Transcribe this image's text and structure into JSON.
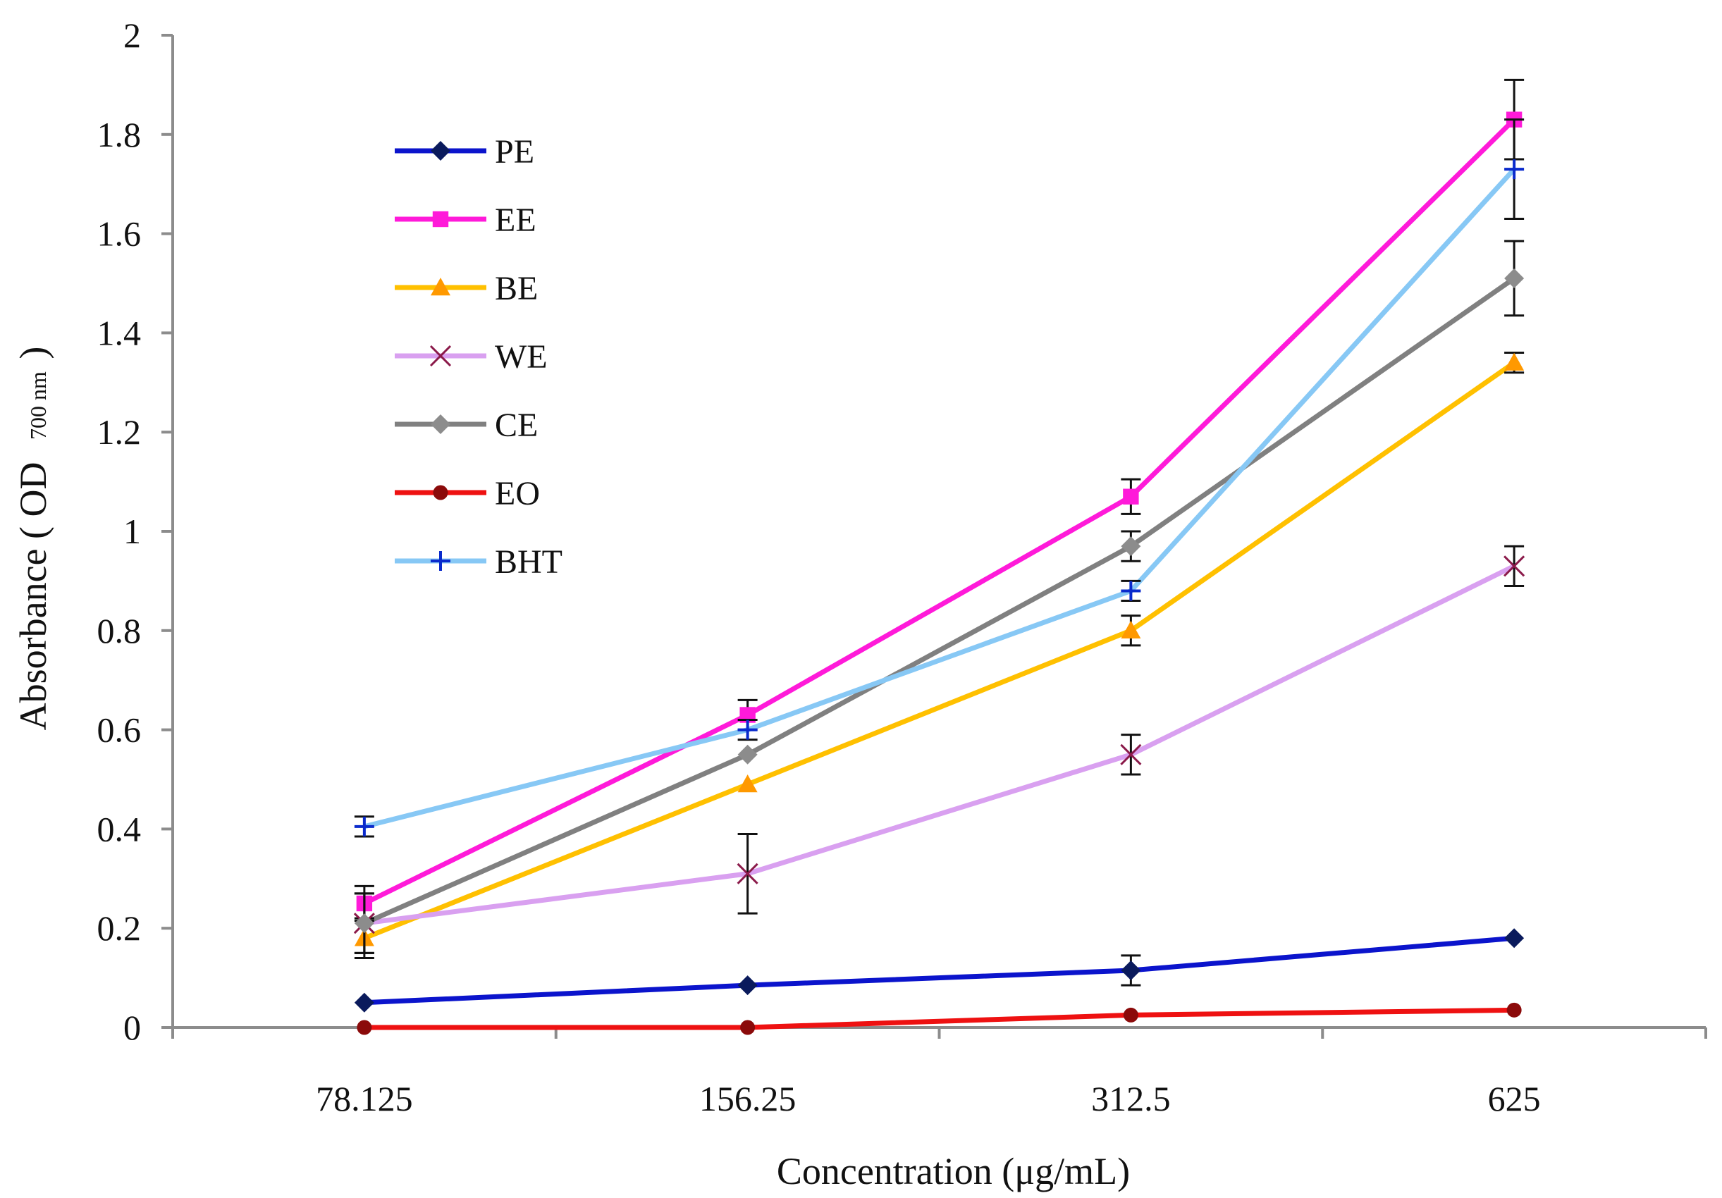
{
  "chart_data": {
    "type": "line",
    "title": "",
    "xlabel": "Concentration (μg/mL)",
    "ylabel_main": "Absorbance ( OD",
    "ylabel_sub": "700 nm",
    "ylabel_close": ")",
    "categories": [
      "78.125",
      "156.25",
      "312.5",
      "625"
    ],
    "ylim": [
      0,
      2
    ],
    "yticks": [
      0,
      0.2,
      0.4,
      0.6,
      0.8,
      1,
      1.2,
      1.4,
      1.6,
      1.8,
      2
    ],
    "ytick_labels": [
      "0",
      "0.2",
      "0.4",
      "0.6",
      "0.8",
      "1",
      "1.2",
      "1.4",
      "1.6",
      "1.8",
      "2"
    ],
    "grid": false,
    "legend_position": "top-left",
    "series": [
      {
        "name": "PE",
        "color": "#0b14cc",
        "marker": "diamond",
        "marker_color": "#0a1a5c",
        "values": [
          0.05,
          0.085,
          0.115,
          0.18
        ],
        "errors": [
          0,
          0,
          0.03,
          0
        ]
      },
      {
        "name": "EE",
        "color": "#ff1ad9",
        "marker": "square",
        "marker_color": "#ff1ad9",
        "values": [
          0.25,
          0.63,
          1.07,
          1.83
        ],
        "errors": [
          0.035,
          0.03,
          0.035,
          0.08
        ]
      },
      {
        "name": "BE",
        "color": "#ffc000",
        "marker": "triangle",
        "marker_color": "#ff9900",
        "values": [
          0.18,
          0.49,
          0.8,
          1.34
        ],
        "errors": [
          0.04,
          0,
          0.03,
          0.02
        ]
      },
      {
        "name": "WE",
        "color": "#d9a0f0",
        "marker": "x",
        "marker_color": "#8b1a4a",
        "values": [
          0.21,
          0.31,
          0.55,
          0.93
        ],
        "errors": [
          0.06,
          0.08,
          0.04,
          0.04
        ]
      },
      {
        "name": "CE",
        "color": "#808080",
        "marker": "diamond",
        "marker_color": "#8c8c8c",
        "values": [
          0.21,
          0.55,
          0.97,
          1.51
        ],
        "errors": [
          0.06,
          0,
          0.03,
          0.075
        ]
      },
      {
        "name": "EO",
        "color": "#ee1111",
        "marker": "circle",
        "marker_color": "#8b0a0a",
        "values": [
          0,
          0,
          0.025,
          0.035
        ],
        "errors": [
          0,
          0,
          0,
          0
        ]
      },
      {
        "name": "BHT",
        "color": "#87c8f5",
        "marker": "plus",
        "marker_color": "#0a2acc",
        "values": [
          0.405,
          0.6,
          0.88,
          1.73
        ],
        "errors": [
          0.02,
          0.02,
          0.02,
          0.1
        ]
      }
    ]
  }
}
